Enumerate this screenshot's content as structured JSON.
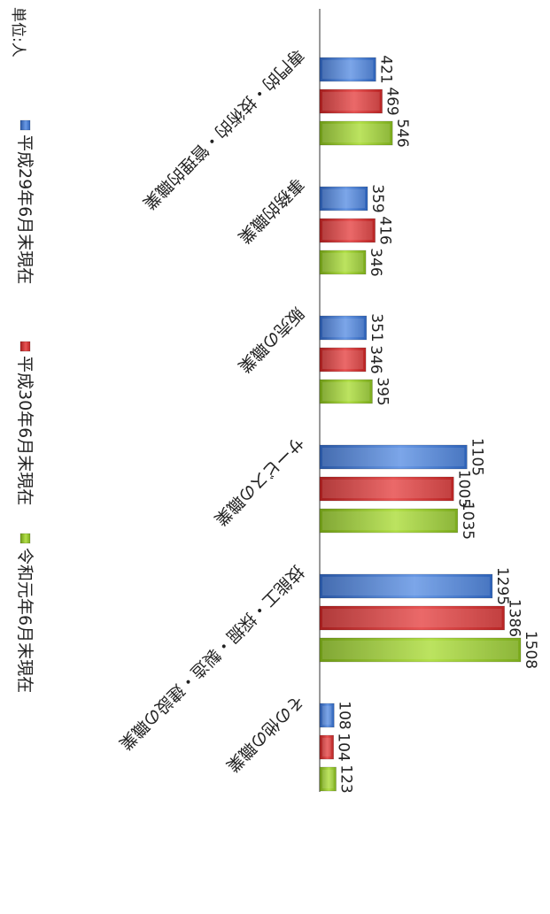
{
  "chart_data": {
    "type": "bar",
    "orientation": "horizontal",
    "title": "",
    "unit_label": "単位:人",
    "categories": [
      "専門的・技術的・管理的職業",
      "事務的職業",
      "販売の職業",
      "サービスの職業",
      "技能工・採掘・製造・建設の職業",
      "その他の職業"
    ],
    "series": [
      {
        "name": "平成29年6月末現在",
        "values": [
          421,
          359,
          351,
          1105,
          1295,
          108
        ]
      },
      {
        "name": "平成30年6月末現在",
        "values": [
          469,
          416,
          346,
          1005,
          1386,
          104
        ]
      },
      {
        "name": "令和元年6月末現在",
        "values": [
          546,
          346,
          395,
          1035,
          1508,
          123
        ]
      }
    ],
    "xlim": [
      0,
      1600
    ],
    "grid": false,
    "legend_position": "top",
    "colors": [
      "#4a7fd0",
      "#d33a3a",
      "#9acd32"
    ]
  }
}
